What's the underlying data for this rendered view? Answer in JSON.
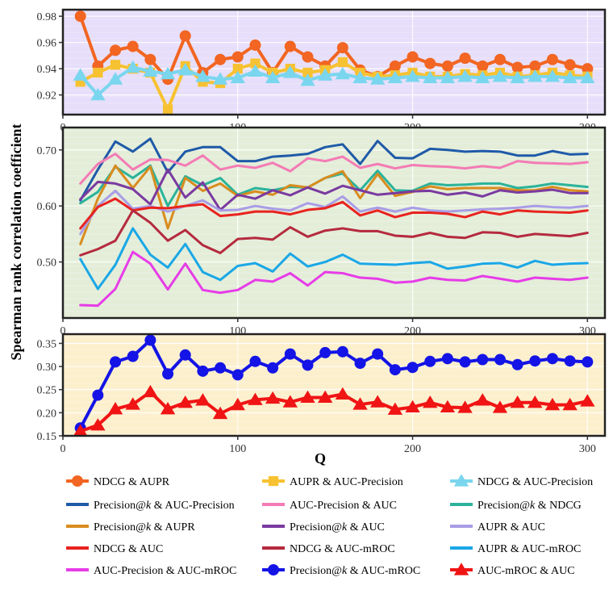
{
  "figure": {
    "ylabel": "Spearman rank correlation coefficient",
    "xlabel": "Q"
  },
  "chart_data": [
    {
      "type": "line",
      "panel": "top",
      "background": "#e6defa",
      "xlim": [
        0,
        310
      ],
      "ylim": [
        0.905,
        0.985
      ],
      "x_ticks": [
        0,
        100,
        200,
        300
      ],
      "x_tick_labels": [
        "0",
        "100",
        "200",
        "300"
      ],
      "y_ticks": [
        0.92,
        0.94,
        0.96,
        0.98
      ],
      "y_tick_labels": [
        "0.92",
        "0.94",
        "0.96",
        "0.98"
      ],
      "x": [
        10,
        20,
        30,
        40,
        50,
        60,
        70,
        80,
        90,
        100,
        110,
        120,
        130,
        140,
        150,
        160,
        170,
        180,
        190,
        200,
        210,
        220,
        230,
        240,
        250,
        260,
        270,
        280,
        290,
        300
      ],
      "series": [
        {
          "name": "NDCG & AUPR",
          "color": "#f26522",
          "marker": "circle",
          "width": 4,
          "values": [
            0.98,
            0.942,
            0.954,
            0.957,
            0.947,
            0.932,
            0.965,
            0.937,
            0.947,
            0.949,
            0.958,
            0.937,
            0.957,
            0.949,
            0.942,
            0.956,
            0.939,
            0.934,
            0.942,
            0.949,
            0.944,
            0.942,
            0.948,
            0.942,
            0.947,
            0.941,
            0.942,
            0.947,
            0.943,
            0.94
          ]
        },
        {
          "name": "AUPR & AUC-Precision",
          "color": "#f7c232",
          "marker": "square",
          "width": 4,
          "values": [
            0.93,
            0.937,
            0.943,
            0.94,
            0.937,
            0.909,
            0.942,
            0.93,
            0.929,
            0.94,
            0.944,
            0.937,
            0.94,
            0.937,
            0.939,
            0.945,
            0.937,
            0.934,
            0.935,
            0.937,
            0.934,
            0.934,
            0.936,
            0.935,
            0.937,
            0.934,
            0.935,
            0.937,
            0.935,
            0.934
          ]
        },
        {
          "name": "NDCG & AUC-Precision",
          "color": "#7ad6ee",
          "marker": "triangle",
          "width": 4,
          "values": [
            0.935,
            0.92,
            0.932,
            0.941,
            0.938,
            0.936,
            0.939,
            0.934,
            0.932,
            0.933,
            0.938,
            0.933,
            0.937,
            0.931,
            0.935,
            0.936,
            0.933,
            0.932,
            0.933,
            0.934,
            0.933,
            0.933,
            0.934,
            0.933,
            0.934,
            0.933,
            0.934,
            0.934,
            0.933,
            0.933
          ]
        }
      ]
    },
    {
      "type": "line",
      "panel": "middle",
      "background": "#e3edd8",
      "xlim": [
        0,
        310
      ],
      "ylim": [
        0.4,
        0.74
      ],
      "x_ticks": [
        0,
        100,
        200,
        300
      ],
      "x_tick_labels": [
        "0",
        "100",
        "200",
        "300"
      ],
      "y_ticks": [
        0.5,
        0.6,
        0.7
      ],
      "y_tick_labels": [
        "0.50",
        "0.60",
        "0.70"
      ],
      "x": [
        10,
        20,
        30,
        40,
        50,
        60,
        70,
        80,
        90,
        100,
        110,
        120,
        130,
        140,
        150,
        160,
        170,
        180,
        190,
        200,
        210,
        220,
        230,
        240,
        250,
        260,
        270,
        280,
        290,
        300
      ],
      "series": [
        {
          "name": "Precision@k & AUC-Precision",
          "color": "#1f5aa8",
          "marker": "none",
          "width": 3,
          "values": [
            0.61,
            0.665,
            0.715,
            0.697,
            0.72,
            0.66,
            0.697,
            0.705,
            0.705,
            0.68,
            0.68,
            0.688,
            0.69,
            0.693,
            0.705,
            0.71,
            0.675,
            0.716,
            0.686,
            0.685,
            0.702,
            0.7,
            0.697,
            0.698,
            0.697,
            0.69,
            0.69,
            0.698,
            0.692,
            0.693
          ]
        },
        {
          "name": "AUC-Precision & AUC",
          "color": "#f47bb5",
          "marker": "none",
          "width": 3,
          "values": [
            0.64,
            0.675,
            0.693,
            0.665,
            0.683,
            0.682,
            0.672,
            0.69,
            0.665,
            0.672,
            0.668,
            0.677,
            0.662,
            0.685,
            0.68,
            0.688,
            0.668,
            0.675,
            0.667,
            0.673,
            0.671,
            0.67,
            0.667,
            0.671,
            0.668,
            0.68,
            0.677,
            0.676,
            0.675,
            0.678
          ]
        },
        {
          "name": "Precision@k & NDCG",
          "color": "#2bb39a",
          "marker": "none",
          "width": 3,
          "values": [
            0.605,
            0.625,
            0.67,
            0.65,
            0.672,
            0.6,
            0.653,
            0.637,
            0.65,
            0.62,
            0.632,
            0.628,
            0.634,
            0.633,
            0.65,
            0.658,
            0.628,
            0.663,
            0.628,
            0.627,
            0.64,
            0.637,
            0.638,
            0.64,
            0.64,
            0.632,
            0.635,
            0.64,
            0.637,
            0.634
          ]
        },
        {
          "name": "Precision@k & AUPR",
          "color": "#d98c1e",
          "marker": "none",
          "width": 3,
          "values": [
            0.532,
            0.613,
            0.672,
            0.632,
            0.67,
            0.56,
            0.65,
            0.627,
            0.64,
            0.618,
            0.626,
            0.62,
            0.637,
            0.633,
            0.65,
            0.662,
            0.614,
            0.657,
            0.618,
            0.625,
            0.635,
            0.63,
            0.632,
            0.632,
            0.632,
            0.628,
            0.628,
            0.634,
            0.628,
            0.626
          ]
        },
        {
          "name": "Precision@k & AUC",
          "color": "#7a3aa0",
          "marker": "none",
          "width": 3,
          "values": [
            0.612,
            0.643,
            0.64,
            0.63,
            0.603,
            0.665,
            0.615,
            0.642,
            0.593,
            0.62,
            0.613,
            0.628,
            0.619,
            0.633,
            0.622,
            0.636,
            0.628,
            0.62,
            0.623,
            0.626,
            0.627,
            0.62,
            0.624,
            0.617,
            0.628,
            0.624,
            0.626,
            0.629,
            0.623,
            0.623
          ]
        },
        {
          "name": "AUPR & AUC",
          "color": "#a99de6",
          "marker": "none",
          "width": 3,
          "values": [
            0.55,
            0.6,
            0.627,
            0.595,
            0.6,
            0.59,
            0.6,
            0.61,
            0.592,
            0.593,
            0.6,
            0.595,
            0.592,
            0.605,
            0.598,
            0.617,
            0.59,
            0.597,
            0.59,
            0.597,
            0.592,
            0.59,
            0.592,
            0.594,
            0.595,
            0.597,
            0.6,
            0.598,
            0.597,
            0.6
          ]
        },
        {
          "name": "NDCG & AUC",
          "color": "#e8231f",
          "marker": "none",
          "width": 3,
          "values": [
            0.56,
            0.598,
            0.613,
            0.592,
            0.597,
            0.596,
            0.6,
            0.603,
            0.582,
            0.585,
            0.59,
            0.59,
            0.585,
            0.593,
            0.596,
            0.607,
            0.583,
            0.592,
            0.58,
            0.588,
            0.588,
            0.586,
            0.58,
            0.59,
            0.585,
            0.592,
            0.59,
            0.589,
            0.588,
            0.592
          ]
        },
        {
          "name": "NDCG & AUC-mROC",
          "color": "#b52a3e",
          "marker": "none",
          "width": 3,
          "values": [
            0.512,
            0.523,
            0.538,
            0.592,
            0.57,
            0.538,
            0.557,
            0.53,
            0.516,
            0.541,
            0.543,
            0.54,
            0.562,
            0.545,
            0.556,
            0.56,
            0.555,
            0.555,
            0.547,
            0.545,
            0.552,
            0.545,
            0.543,
            0.553,
            0.552,
            0.545,
            0.55,
            0.548,
            0.546,
            0.552
          ]
        },
        {
          "name": "AUPR & AUC-mROC",
          "color": "#1aa7e6",
          "marker": "none",
          "width": 3,
          "values": [
            0.505,
            0.452,
            0.495,
            0.56,
            0.513,
            0.49,
            0.532,
            0.482,
            0.468,
            0.493,
            0.498,
            0.483,
            0.515,
            0.492,
            0.5,
            0.513,
            0.497,
            0.496,
            0.495,
            0.498,
            0.5,
            0.488,
            0.492,
            0.497,
            0.498,
            0.49,
            0.502,
            0.495,
            0.497,
            0.498
          ]
        },
        {
          "name": "AUC-Precision & AUC-mROC",
          "color": "#e73ce8",
          "marker": "none",
          "width": 3,
          "values": [
            0.423,
            0.422,
            0.452,
            0.518,
            0.497,
            0.451,
            0.497,
            0.45,
            0.445,
            0.45,
            0.468,
            0.465,
            0.48,
            0.458,
            0.482,
            0.48,
            0.472,
            0.47,
            0.463,
            0.465,
            0.472,
            0.468,
            0.467,
            0.475,
            0.47,
            0.465,
            0.472,
            0.47,
            0.468,
            0.472
          ]
        }
      ]
    },
    {
      "type": "line",
      "panel": "bottom",
      "background": "#fcefcc",
      "xlim": [
        0,
        310
      ],
      "ylim": [
        0.15,
        0.37
      ],
      "x_ticks": [
        0,
        100,
        200,
        300
      ],
      "x_tick_labels": [
        "0",
        "100",
        "200",
        "300"
      ],
      "y_ticks": [
        0.15,
        0.2,
        0.25,
        0.3,
        0.35
      ],
      "y_tick_labels": [
        "0.15",
        "0.20",
        "0.25",
        "0.30",
        "0.35"
      ],
      "x": [
        10,
        20,
        30,
        40,
        50,
        60,
        70,
        80,
        90,
        100,
        110,
        120,
        130,
        140,
        150,
        160,
        170,
        180,
        190,
        200,
        210,
        220,
        230,
        240,
        250,
        260,
        270,
        280,
        290,
        300
      ],
      "series": [
        {
          "name": "Precision@k & AUC-mROC",
          "color": "#1414e6",
          "marker": "circle",
          "width": 4,
          "values": [
            0.167,
            0.238,
            0.31,
            0.322,
            0.357,
            0.284,
            0.325,
            0.29,
            0.297,
            0.282,
            0.311,
            0.297,
            0.327,
            0.303,
            0.33,
            0.332,
            0.307,
            0.327,
            0.293,
            0.298,
            0.311,
            0.317,
            0.31,
            0.315,
            0.315,
            0.304,
            0.312,
            0.317,
            0.312,
            0.31
          ]
        },
        {
          "name": "AUC-mROC & AUC",
          "color": "#f01414",
          "marker": "triangle",
          "width": 4,
          "values": [
            0.16,
            0.173,
            0.208,
            0.218,
            0.245,
            0.208,
            0.222,
            0.227,
            0.198,
            0.217,
            0.228,
            0.231,
            0.223,
            0.233,
            0.233,
            0.24,
            0.218,
            0.223,
            0.207,
            0.212,
            0.222,
            0.212,
            0.211,
            0.227,
            0.211,
            0.222,
            0.222,
            0.217,
            0.217,
            0.225
          ]
        }
      ]
    }
  ],
  "legend": [
    {
      "label": "NDCG & AUPR",
      "color": "#f26522",
      "marker": "circle"
    },
    {
      "label": "AUPR & AUC-Precision",
      "color": "#f7c232",
      "marker": "square"
    },
    {
      "label": "NDCG & AUC-Precision",
      "color": "#7ad6ee",
      "marker": "triangle"
    },
    {
      "label": "Precision@k & AUC-Precision",
      "color": "#1f5aa8",
      "marker": "none"
    },
    {
      "label": "AUC-Precision & AUC",
      "color": "#f47bb5",
      "marker": "none"
    },
    {
      "label": "Precision@k & NDCG",
      "color": "#2bb39a",
      "marker": "none"
    },
    {
      "label": "Precision@k & AUPR",
      "color": "#d98c1e",
      "marker": "none"
    },
    {
      "label": "Precision@k & AUC",
      "color": "#7a3aa0",
      "marker": "none"
    },
    {
      "label": "AUPR & AUC",
      "color": "#a99de6",
      "marker": "none"
    },
    {
      "label": "NDCG & AUC",
      "color": "#e8231f",
      "marker": "none"
    },
    {
      "label": "NDCG & AUC-mROC",
      "color": "#b52a3e",
      "marker": "none"
    },
    {
      "label": "AUPR & AUC-mROC",
      "color": "#1aa7e6",
      "marker": "none"
    },
    {
      "label": "AUC-Precision & AUC-mROC",
      "color": "#e73ce8",
      "marker": "none"
    },
    {
      "label": "Precision@k & AUC-mROC",
      "color": "#1414e6",
      "marker": "circle"
    },
    {
      "label": "AUC-mROC & AUC",
      "color": "#f01414",
      "marker": "triangle"
    }
  ]
}
